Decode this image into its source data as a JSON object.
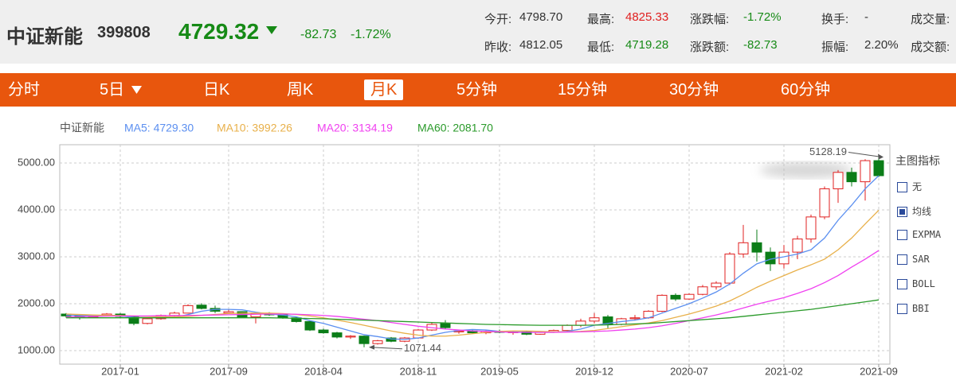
{
  "header": {
    "name": "中证新能",
    "code": "399808",
    "price": "4729.32",
    "change": "-82.73",
    "change_pct": "-1.72%",
    "stats": [
      {
        "label": "今开:",
        "value": "4798.70"
      },
      {
        "label": "最高:",
        "value": "4825.33"
      },
      {
        "label": "涨跌幅:",
        "value": "-1.72%"
      },
      {
        "label": "换手:",
        "value": "-"
      },
      {
        "label": "成交量:"
      },
      {
        "label": "昨收:",
        "value": "4812.05"
      },
      {
        "label": "最低:",
        "value": "4719.28"
      },
      {
        "label": "涨跌额:",
        "value": "-82.73"
      },
      {
        "label": "振幅:",
        "value": "2.20%"
      },
      {
        "label": "成交额:"
      }
    ]
  },
  "tabs": [
    "分时",
    "5日",
    "日K",
    "周K",
    "月K",
    "5分钟",
    "15分钟",
    "30分钟",
    "60分钟"
  ],
  "selected_tab": 4,
  "indicator_panel": {
    "title": "主图指标",
    "options": [
      "无",
      "均线",
      "EXPMA",
      "SAR",
      "BOLL",
      "BBI"
    ],
    "checked": 1
  },
  "chart_data": {
    "type": "candlestick",
    "name": "中证新能",
    "categories": [
      null,
      null,
      null,
      null,
      "2017-01",
      null,
      null,
      null,
      null,
      null,
      null,
      null,
      "2017-09",
      null,
      null,
      null,
      null,
      null,
      null,
      "2018-04",
      null,
      null,
      null,
      null,
      null,
      null,
      "2018-11",
      null,
      null,
      null,
      null,
      null,
      "2019-05",
      null,
      null,
      null,
      null,
      null,
      null,
      "2019-12",
      null,
      null,
      null,
      null,
      null,
      null,
      "2020-07",
      null,
      null,
      null,
      null,
      null,
      null,
      "2021-02",
      null,
      null,
      null,
      null,
      null,
      null,
      "2021-09"
    ],
    "open": [
      1780,
      1740,
      1720,
      1750,
      1780,
      1720,
      1580,
      1680,
      1750,
      1800,
      1970,
      1900,
      1800,
      1830,
      1720,
      1780,
      1770,
      1700,
      1620,
      1440,
      1380,
      1290,
      1310,
      1150,
      1270,
      1200,
      1270,
      1440,
      1580,
      1400,
      1420,
      1380,
      1410,
      1390,
      1400,
      1350,
      1390,
      1430,
      1540,
      1630,
      1720,
      1560,
      1680,
      1700,
      1840,
      2180,
      2100,
      2200,
      2360,
      2440,
      3060,
      3300,
      3100,
      2850,
      3100,
      3380,
      3850,
      4450,
      4800,
      4600,
      5050
    ],
    "high": [
      1800,
      1760,
      1770,
      1800,
      1800,
      1740,
      1700,
      1770,
      1830,
      1990,
      2010,
      1960,
      1880,
      1840,
      1800,
      1820,
      1790,
      1720,
      1640,
      1470,
      1400,
      1330,
      1320,
      1230,
      1290,
      1290,
      1460,
      1600,
      1650,
      1440,
      1440,
      1430,
      1450,
      1420,
      1420,
      1400,
      1450,
      1560,
      1680,
      1800,
      1760,
      1700,
      1760,
      1860,
      2200,
      2220,
      2220,
      2400,
      2480,
      3100,
      3680,
      3580,
      3200,
      3250,
      3450,
      3900,
      4500,
      4850,
      4900,
      5080,
      5128.19
    ],
    "low": [
      1700,
      1660,
      1700,
      1730,
      1700,
      1540,
      1560,
      1660,
      1730,
      1790,
      1880,
      1800,
      1780,
      1700,
      1580,
      1740,
      1680,
      1600,
      1420,
      1360,
      1260,
      1250,
      1071.44,
      1130,
      1180,
      1180,
      1250,
      1420,
      1460,
      1360,
      1360,
      1350,
      1370,
      1340,
      1330,
      1340,
      1380,
      1410,
      1500,
      1580,
      1480,
      1540,
      1640,
      1680,
      1820,
      2060,
      2080,
      2180,
      2300,
      2400,
      2980,
      2900,
      2700,
      2750,
      2950,
      3300,
      3800,
      4150,
      4500,
      4200,
      4700
    ],
    "close": [
      1740,
      1720,
      1750,
      1780,
      1730,
      1580,
      1680,
      1750,
      1800,
      1960,
      1900,
      1840,
      1830,
      1720,
      1780,
      1770,
      1700,
      1620,
      1440,
      1380,
      1290,
      1310,
      1150,
      1210,
      1200,
      1270,
      1440,
      1560,
      1490,
      1420,
      1380,
      1410,
      1390,
      1400,
      1350,
      1390,
      1430,
      1540,
      1630,
      1700,
      1560,
      1680,
      1700,
      1840,
      2180,
      2100,
      2200,
      2360,
      2440,
      3060,
      3300,
      3100,
      2850,
      3100,
      3380,
      3850,
      4450,
      4800,
      4600,
      5050,
      4729.32
    ],
    "up_color": "#e02020",
    "down_color": "#0b7d18",
    "series": [
      {
        "name": "MA5: 4729.30",
        "color": "#5b8ff0",
        "values": [
          1760,
          1750,
          1745,
          1740,
          1740,
          1710,
          1700,
          1700,
          1710,
          1770,
          1840,
          1880,
          1880,
          1870,
          1820,
          1780,
          1760,
          1720,
          1640,
          1580,
          1500,
          1420,
          1340,
          1300,
          1250,
          1240,
          1270,
          1330,
          1390,
          1430,
          1450,
          1440,
          1410,
          1400,
          1390,
          1390,
          1390,
          1410,
          1460,
          1540,
          1580,
          1620,
          1650,
          1700,
          1800,
          1900,
          2000,
          2120,
          2250,
          2420,
          2650,
          2850,
          2950,
          3000,
          3060,
          3150,
          3400,
          3780,
          4100,
          4450,
          4729.3
        ]
      },
      {
        "name": "MA10: 3992.26",
        "color": "#e8b04a",
        "values": [
          1780,
          1770,
          1760,
          1755,
          1750,
          1740,
          1730,
          1720,
          1720,
          1730,
          1750,
          1770,
          1790,
          1800,
          1800,
          1800,
          1790,
          1770,
          1740,
          1700,
          1650,
          1600,
          1540,
          1480,
          1420,
          1370,
          1330,
          1310,
          1310,
          1330,
          1360,
          1390,
          1410,
          1420,
          1420,
          1410,
          1400,
          1400,
          1410,
          1430,
          1470,
          1510,
          1550,
          1590,
          1640,
          1710,
          1780,
          1860,
          1950,
          2060,
          2200,
          2350,
          2480,
          2600,
          2720,
          2830,
          2950,
          3150,
          3400,
          3700,
          3992.26
        ]
      },
      {
        "name": "MA20: 3134.19",
        "color": "#f040f0",
        "values": [
          1720,
          1725,
          1730,
          1735,
          1740,
          1740,
          1740,
          1745,
          1745,
          1750,
          1755,
          1760,
          1765,
          1770,
          1775,
          1780,
          1780,
          1775,
          1765,
          1750,
          1730,
          1700,
          1670,
          1640,
          1600,
          1560,
          1520,
          1490,
          1460,
          1440,
          1420,
          1410,
          1400,
          1390,
          1390,
          1390,
          1390,
          1395,
          1400,
          1410,
          1420,
          1440,
          1460,
          1490,
          1530,
          1580,
          1640,
          1700,
          1760,
          1830,
          1910,
          1990,
          2060,
          2130,
          2220,
          2320,
          2450,
          2600,
          2780,
          2950,
          3134.19
        ]
      },
      {
        "name": "MA60: 2081.70",
        "color": "#2a9a2a",
        "values": [
          1700,
          1700,
          1700,
          1700,
          1700,
          1700,
          1700,
          1700,
          1700,
          1700,
          1700,
          1700,
          1700,
          1700,
          1700,
          1700,
          1695,
          1690,
          1685,
          1680,
          1670,
          1660,
          1650,
          1640,
          1630,
          1620,
          1610,
          1600,
          1590,
          1580,
          1570,
          1560,
          1555,
          1550,
          1545,
          1540,
          1540,
          1540,
          1540,
          1545,
          1550,
          1560,
          1570,
          1580,
          1600,
          1620,
          1640,
          1660,
          1680,
          1700,
          1730,
          1760,
          1790,
          1820,
          1850,
          1880,
          1920,
          1960,
          2000,
          2040,
          2081.7
        ]
      }
    ],
    "ylim": [
      712,
      5390
    ],
    "yticks": [
      {
        "value": 5000,
        "label": "5000.00"
      },
      {
        "value": 4000,
        "label": "4000.00"
      },
      {
        "value": 3000,
        "label": "3000.00"
      },
      {
        "value": 2000,
        "label": "2000.00"
      },
      {
        "value": 1000,
        "label": "1000.00"
      }
    ],
    "grid": true
  }
}
